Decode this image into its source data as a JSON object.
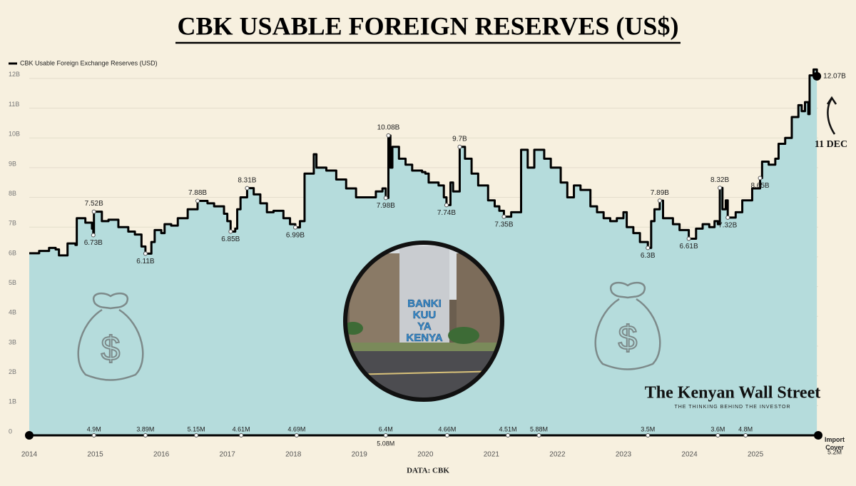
{
  "chart_data": {
    "type": "step-area",
    "title": "CBK USABLE FOREIGN RESERVES (US$)",
    "source": "DATA: CBK",
    "brand": "The Kenyan Wall Street",
    "tagline": "THE THINKING BEHIND THE INVESTOR",
    "image_text": [
      "BANKI",
      "KUU",
      "YA",
      "KENYA"
    ],
    "date_note": "11 DEC",
    "xlim": [
      2014,
      2025.95
    ],
    "xticks": [
      2014,
      2015,
      2016,
      2017,
      2018,
      2019,
      2020,
      2021,
      2022,
      2023,
      2024,
      2025
    ],
    "ylim": [
      0,
      12.5
    ],
    "yticks": [
      0,
      {
        "value": 1,
        "label": "1B"
      },
      {
        "value": 2,
        "label": "2B"
      },
      {
        "value": 3,
        "label": "3B"
      },
      {
        "value": 4,
        "label": "4B"
      },
      {
        "value": 5,
        "label": "5B"
      },
      {
        "value": 6,
        "label": "6B"
      },
      {
        "value": 7,
        "label": "7B"
      },
      {
        "value": 8,
        "label": "8B"
      },
      {
        "value": 9,
        "label": "9B"
      },
      {
        "value": 10,
        "label": "10B"
      },
      {
        "value": 11,
        "label": "11B"
      },
      {
        "value": 12,
        "label": "12B"
      }
    ],
    "grid": true,
    "legend": "top-left",
    "series": [
      {
        "name": "CBK Usable Foreign Exchange Reserves (USD)",
        "color": "#000000",
        "fill": "#b5dcdc",
        "x": [
          2014.0,
          2014.15,
          2014.3,
          2014.4,
          2014.45,
          2014.55,
          2014.58,
          2014.7,
          2014.72,
          2014.85,
          2014.95,
          2014.97,
          2014.98,
          2015.1,
          2015.2,
          2015.35,
          2015.5,
          2015.6,
          2015.7,
          2015.76,
          2015.85,
          2015.9,
          2016.0,
          2016.05,
          2016.15,
          2016.25,
          2016.4,
          2016.55,
          2016.7,
          2016.8,
          2016.95,
          2017.0,
          2017.05,
          2017.12,
          2017.15,
          2017.2,
          2017.3,
          2017.4,
          2017.5,
          2017.6,
          2017.7,
          2017.85,
          2017.95,
          2018.03,
          2018.1,
          2018.17,
          2018.31,
          2018.35,
          2018.5,
          2018.65,
          2018.8,
          2018.95,
          2019.1,
          2019.25,
          2019.35,
          2019.4,
          2019.44,
          2019.47,
          2019.5,
          2019.6,
          2019.7,
          2019.8,
          2019.95,
          2020.0,
          2020.05,
          2020.2,
          2020.28,
          2020.32,
          2020.38,
          2020.42,
          2020.52,
          2020.6,
          2020.7,
          2020.8,
          2020.95,
          2021.05,
          2021.12,
          2021.19,
          2021.3,
          2021.45,
          2021.55,
          2021.65,
          2021.8,
          2021.9,
          2022.05,
          2022.15,
          2022.25,
          2022.35,
          2022.5,
          2022.6,
          2022.7,
          2022.8,
          2022.9,
          2023.0,
          2023.05,
          2023.15,
          2023.25,
          2023.37,
          2023.42,
          2023.47,
          2023.55,
          2023.6,
          2023.75,
          2023.85,
          2023.99,
          2024.1,
          2024.2,
          2024.3,
          2024.38,
          2024.43,
          2024.46,
          2024.5,
          2024.55,
          2024.58,
          2024.7,
          2024.8,
          2024.95,
          2025.07,
          2025.1,
          2025.2,
          2025.3,
          2025.35,
          2025.45,
          2025.55,
          2025.65,
          2025.7,
          2025.75,
          2025.8,
          2025.82,
          2025.88,
          2025.93
        ],
        "values": [
          6.12,
          6.2,
          6.3,
          6.25,
          6.05,
          6.05,
          6.45,
          6.4,
          7.3,
          7.15,
          6.95,
          6.73,
          7.52,
          7.2,
          7.25,
          7.0,
          6.85,
          6.75,
          6.35,
          6.11,
          6.5,
          6.9,
          6.8,
          7.1,
          7.05,
          7.3,
          7.6,
          7.88,
          7.8,
          7.7,
          7.45,
          7.2,
          6.85,
          6.95,
          7.6,
          8.0,
          8.31,
          8.1,
          7.8,
          7.5,
          7.55,
          7.3,
          7.1,
          6.99,
          7.2,
          8.8,
          9.45,
          9.0,
          8.9,
          8.6,
          8.3,
          8.0,
          8.0,
          8.2,
          8.3,
          7.98,
          10.08,
          9.0,
          9.7,
          9.3,
          9.1,
          8.9,
          8.85,
          8.8,
          8.5,
          8.4,
          8.0,
          7.74,
          8.5,
          8.2,
          9.7,
          9.3,
          8.8,
          8.4,
          7.9,
          7.7,
          7.55,
          7.35,
          7.5,
          9.6,
          9.0,
          9.6,
          9.3,
          9.0,
          8.5,
          8.0,
          8.4,
          8.25,
          7.7,
          7.5,
          7.3,
          7.2,
          7.3,
          7.5,
          7.0,
          6.8,
          6.5,
          6.3,
          7.2,
          7.6,
          7.89,
          7.3,
          7.1,
          6.9,
          6.61,
          6.95,
          7.1,
          7.0,
          7.2,
          7.1,
          8.32,
          7.6,
          7.9,
          7.32,
          7.5,
          7.9,
          8.3,
          8.65,
          9.2,
          9.1,
          9.3,
          9.8,
          10.0,
          10.7,
          11.1,
          10.9,
          11.2,
          10.8,
          12.1,
          12.3,
          12.07
        ]
      }
    ],
    "peak_labels": [
      {
        "x": 2014.98,
        "y": 7.52,
        "label": "7.52B"
      },
      {
        "x": 2016.55,
        "y": 7.88,
        "label": "7.88B"
      },
      {
        "x": 2017.3,
        "y": 8.31,
        "label": "8.31B"
      },
      {
        "x": 2019.44,
        "y": 10.08,
        "label": "10.08B"
      },
      {
        "x": 2020.52,
        "y": 9.7,
        "label": "9.7B"
      },
      {
        "x": 2023.55,
        "y": 7.89,
        "label": "7.89B"
      },
      {
        "x": 2024.46,
        "y": 8.32,
        "label": "8.32B"
      }
    ],
    "trough_labels": [
      {
        "x": 2014.97,
        "y": 6.73,
        "label": "6.73B"
      },
      {
        "x": 2015.76,
        "y": 6.11,
        "label": "6.11B"
      },
      {
        "x": 2017.05,
        "y": 6.85,
        "label": "6.85B"
      },
      {
        "x": 2018.03,
        "y": 6.99,
        "label": "6.99B"
      },
      {
        "x": 2019.4,
        "y": 7.98,
        "label": "7.98B"
      },
      {
        "x": 2020.32,
        "y": 7.74,
        "label": "7.74B"
      },
      {
        "x": 2021.19,
        "y": 7.35,
        "label": "7.35B"
      },
      {
        "x": 2023.37,
        "y": 6.3,
        "label": "6.3B"
      },
      {
        "x": 2023.99,
        "y": 6.61,
        "label": "6.61B"
      },
      {
        "x": 2024.58,
        "y": 7.32,
        "label": "7.32B"
      },
      {
        "x": 2025.07,
        "y": 8.65,
        "label": "8.65B"
      }
    ],
    "end_label": {
      "x": 2025.93,
      "y": 12.07,
      "label": "12.07B"
    },
    "import_cover": {
      "name": "Import Cover",
      "x": [
        2014.98,
        2015.76,
        2016.53,
        2017.21,
        2018.05,
        2019.4,
        2019.4,
        2020.33,
        2021.25,
        2021.72,
        2023.37,
        2024.43,
        2024.85,
        2025.93
      ],
      "values": [
        4.9,
        3.89,
        5.15,
        4.61,
        4.69,
        6.4,
        5.08,
        4.66,
        4.51,
        5.88,
        3.5,
        3.6,
        4.8,
        5.2
      ],
      "value_labels": [
        "4.9M",
        "3.89M",
        "5.15M",
        "4.61M",
        "4.69M",
        "6.4M",
        "5.08M",
        "4.66M",
        "4.51M",
        "5.88M",
        "3.5M",
        "3.6M",
        "4.8M",
        "5.2M"
      ]
    }
  }
}
